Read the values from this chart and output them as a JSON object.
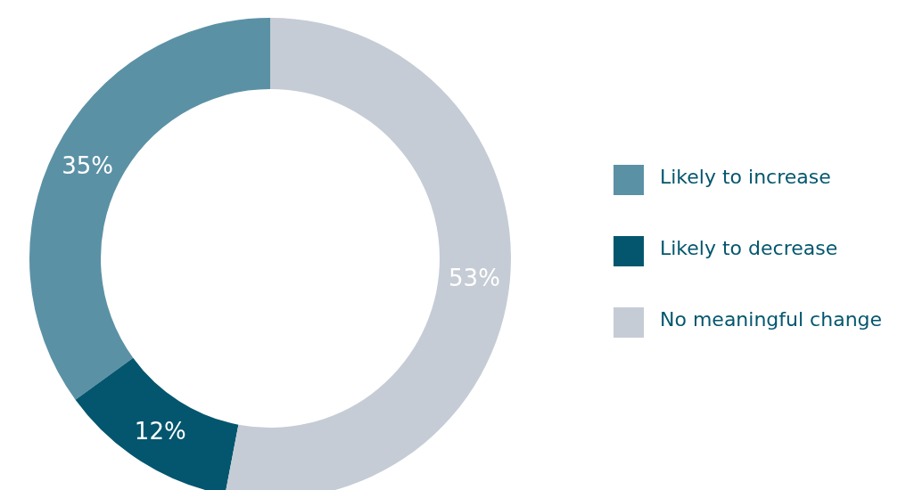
{
  "chart_data": {
    "type": "donut",
    "categories": [
      "Likely to increase",
      "Likely to decrease",
      "No meaningful change"
    ],
    "values": [
      35,
      12,
      53
    ],
    "colors": [
      "#5b91a5",
      "#03566e",
      "#c5ccd5"
    ],
    "value_labels": [
      "35%",
      "12%",
      "53%"
    ],
    "legend": "right"
  }
}
